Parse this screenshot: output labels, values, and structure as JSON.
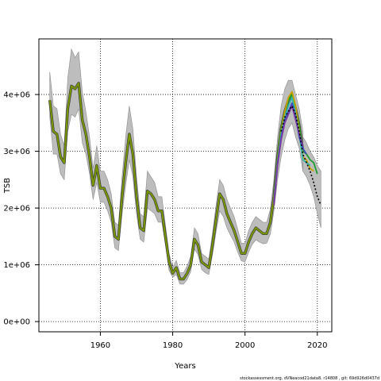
{
  "chart_data": {
    "type": "line",
    "xlabel": "Years",
    "ylabel": "TSB",
    "xlim": [
      1943,
      2024
    ],
    "ylim": [
      -180000,
      4980000
    ],
    "x_ticks": [
      1960,
      1980,
      2000,
      2020
    ],
    "x_tick_labels": [
      "1960",
      "1980",
      "2000",
      "2020"
    ],
    "y_ticks": [
      0,
      1000000,
      2000000,
      3000000,
      4000000
    ],
    "y_tick_labels": [
      "0e+00",
      "1e+06",
      "2e+06",
      "3e+06",
      "4e+06"
    ],
    "grid": true,
    "footer": "stockassessment.org, dVNeacod21data8, r14808 , git: 69d926d0437d",
    "colors": {
      "ribbon": "#bdbdbd",
      "estimate": "#7a9a01",
      "estimate_outline": "#3a3a3a",
      "peels": [
        "#1e9e2e",
        "#c7a400",
        "#2fb7a8",
        "#3b4cc0",
        "#7a3aa6"
      ],
      "forecast": "#000000",
      "grid": "#000000"
    },
    "series": [
      {
        "years": [
          1946,
          1947,
          1948,
          1949,
          1950,
          1951,
          1952,
          1953,
          1954,
          1955,
          1956,
          1957,
          1958,
          1959,
          1960,
          1961,
          1962,
          1963,
          1964,
          1965,
          1966,
          1967,
          1968,
          1969,
          1970,
          1971,
          1972,
          1973,
          1974,
          1975,
          1976,
          1977,
          1978,
          1979,
          1980,
          1981,
          1982,
          1983,
          1984,
          1985,
          1986,
          1987,
          1988,
          1989,
          1990,
          1991,
          1992,
          1993,
          1994,
          1995,
          1996,
          1997,
          1998,
          1999,
          2000,
          2001,
          2002,
          2003,
          2004,
          2005,
          2006,
          2007,
          2008,
          2009,
          2010,
          2011,
          2012,
          2013,
          2014,
          2015,
          2016
        ],
        "values": [
          3900000,
          3350000,
          3300000,
          2900000,
          2800000,
          3750000,
          4150000,
          4100000,
          4200000,
          3550000,
          3300000,
          2900000,
          2400000,
          2750000,
          2350000,
          2350000,
          2200000,
          2000000,
          1500000,
          1450000,
          2200000,
          2800000,
          3300000,
          2950000,
          2200000,
          1650000,
          1600000,
          2300000,
          2250000,
          2150000,
          1950000,
          1950000,
          1500000,
          1050000,
          850000,
          950000,
          750000,
          750000,
          850000,
          1000000,
          1450000,
          1350000,
          1050000,
          1000000,
          950000,
          1350000,
          1800000,
          2250000,
          2150000,
          1900000,
          1750000,
          1600000,
          1400000,
          1200000,
          1200000,
          1400000,
          1550000,
          1650000,
          1600000,
          1550000,
          1550000,
          1750000,
          2200000,
          2900000,
          3400000,
          3700000,
          3900000,
          4000000,
          3750000,
          3450000,
          3000000
        ],
        "lower": [
          3600000,
          2950000,
          2950000,
          2600000,
          2500000,
          3350000,
          3650000,
          3600000,
          3750000,
          3150000,
          2950000,
          2600000,
          2150000,
          2450000,
          2100000,
          2100000,
          1950000,
          1750000,
          1300000,
          1250000,
          1900000,
          2400000,
          2850000,
          2550000,
          1900000,
          1450000,
          1400000,
          2000000,
          1950000,
          1900000,
          1750000,
          1750000,
          1350000,
          900000,
          780000,
          830000,
          660000,
          660000,
          740000,
          880000,
          1280000,
          1180000,
          920000,
          860000,
          830000,
          1180000,
          1580000,
          1950000,
          1850000,
          1650000,
          1520000,
          1400000,
          1220000,
          1070000,
          1050000,
          1220000,
          1360000,
          1440000,
          1400000,
          1370000,
          1380000,
          1540000,
          1950000,
          2500000,
          2900000,
          3200000,
          3400000,
          3500000,
          3250000,
          3050000,
          2650000
        ],
        "upper": [
          4400000,
          3800000,
          3750000,
          3300000,
          3100000,
          4300000,
          4800000,
          4650000,
          4750000,
          4050000,
          3700000,
          3250000,
          2700000,
          3100000,
          2650000,
          2650000,
          2500000,
          2250000,
          1750000,
          1700000,
          2550000,
          3250000,
          3800000,
          3400000,
          2550000,
          1900000,
          1850000,
          2650000,
          2550000,
          2450000,
          2200000,
          2200000,
          1700000,
          1200000,
          950000,
          1080000,
          860000,
          860000,
          980000,
          1150000,
          1650000,
          1550000,
          1200000,
          1150000,
          1100000,
          1550000,
          2050000,
          2500000,
          2400000,
          2150000,
          2000000,
          1850000,
          1620000,
          1380000,
          1380000,
          1600000,
          1750000,
          1850000,
          1800000,
          1750000,
          1750000,
          1980000,
          2500000,
          3250000,
          3800000,
          4100000,
          4250000,
          4250000,
          4000000,
          3750000,
          3350000
        ]
      }
    ],
    "peels": [
      {
        "years": [
          2008,
          2009,
          2010,
          2011,
          2012,
          2013,
          2014,
          2015,
          2016,
          2017,
          2018,
          2019,
          2020
        ],
        "values": [
          2200000,
          2900000,
          3400000,
          3700000,
          3900000,
          4000000,
          3750000,
          3450000,
          3000000,
          2950000,
          2850000,
          2800000,
          2600000
        ]
      },
      {
        "years": [
          2008,
          2009,
          2010,
          2011,
          2012,
          2013,
          2014,
          2015,
          2016,
          2017,
          2018,
          2019
        ],
        "values": [
          2150000,
          2850000,
          3350000,
          3700000,
          3950000,
          4050000,
          3800000,
          3350000,
          2900000,
          2850000,
          2700000,
          2650000
        ]
      },
      {
        "years": [
          2008,
          2009,
          2010,
          2011,
          2012,
          2013,
          2014,
          2015,
          2016,
          2017,
          2018
        ],
        "values": [
          2100000,
          2800000,
          3300000,
          3600000,
          3800000,
          3950000,
          3650000,
          3300000,
          2850000,
          2800000,
          2750000
        ]
      },
      {
        "years": [
          2008,
          2009,
          2010,
          2011,
          2012,
          2013,
          2014,
          2015,
          2016,
          2017
        ],
        "values": [
          2100000,
          2800000,
          3250000,
          3550000,
          3700000,
          3850000,
          3600000,
          3250000,
          3050000,
          2950000
        ]
      },
      {
        "years": [
          2008,
          2009,
          2010,
          2011,
          2012,
          2013,
          2014,
          2015,
          2016
        ],
        "values": [
          2050000,
          2750000,
          3200000,
          3500000,
          3650000,
          3800000,
          3550000,
          3300000,
          3100000
        ]
      }
    ],
    "forecast": {
      "years": [
        2010,
        2011,
        2012,
        2013,
        2014,
        2015,
        2016,
        2017,
        2018,
        2019,
        2020,
        2021
      ],
      "values": [
        3350000,
        3600000,
        3700000,
        3800000,
        3650000,
        3350000,
        2950000,
        2800000,
        2650000,
        2450000,
        2200000,
        2050000
      ]
    },
    "forecast_band": {
      "years": [
        2016,
        2017,
        2018,
        2019,
        2020,
        2021
      ],
      "lower": [
        2650000,
        2550000,
        2400000,
        2200000,
        1900000,
        1650000
      ],
      "upper": [
        3250000,
        3150000,
        3000000,
        2900000,
        2750000,
        2650000
      ]
    }
  }
}
